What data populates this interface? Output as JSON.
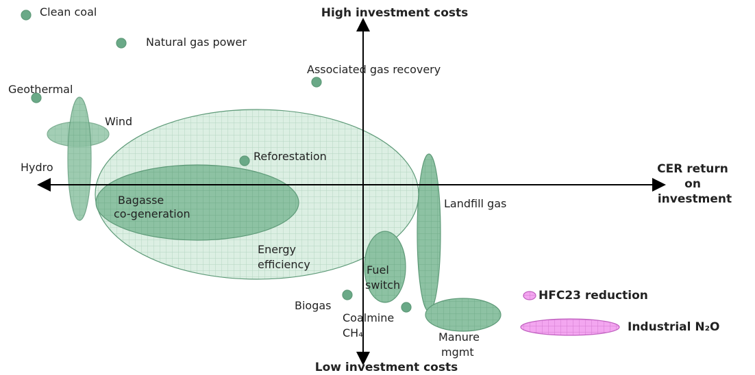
{
  "axes": {
    "top": "High investment costs",
    "bottom": "Low investment costs",
    "right": [
      "CER return",
      "on",
      "investment"
    ]
  },
  "nodes": [
    {
      "label": [
        "Clean coal"
      ]
    },
    {
      "label": [
        "Natural gas power"
      ]
    },
    {
      "label": [
        "Associated gas recovery"
      ]
    },
    {
      "label": [
        "Geothermal"
      ]
    },
    {
      "label": [
        "Wind"
      ]
    },
    {
      "label": [
        "Hydro"
      ]
    },
    {
      "label": [
        "Reforestation"
      ]
    },
    {
      "label": [
        "Bagasse",
        "co-generation"
      ]
    },
    {
      "label": [
        "Energy",
        "efficiency"
      ]
    },
    {
      "label": [
        "Landfill gas"
      ]
    },
    {
      "label": [
        "Fuel",
        "switch"
      ]
    },
    {
      "label": [
        "Biogas"
      ]
    },
    {
      "label": [
        "Coalmine",
        "CH₄"
      ]
    },
    {
      "label": [
        "Manure",
        "mgmt"
      ]
    },
    {
      "label": [
        "HFC23 reduction"
      ]
    },
    {
      "label": [
        "Industrial N₂O"
      ]
    }
  ]
}
